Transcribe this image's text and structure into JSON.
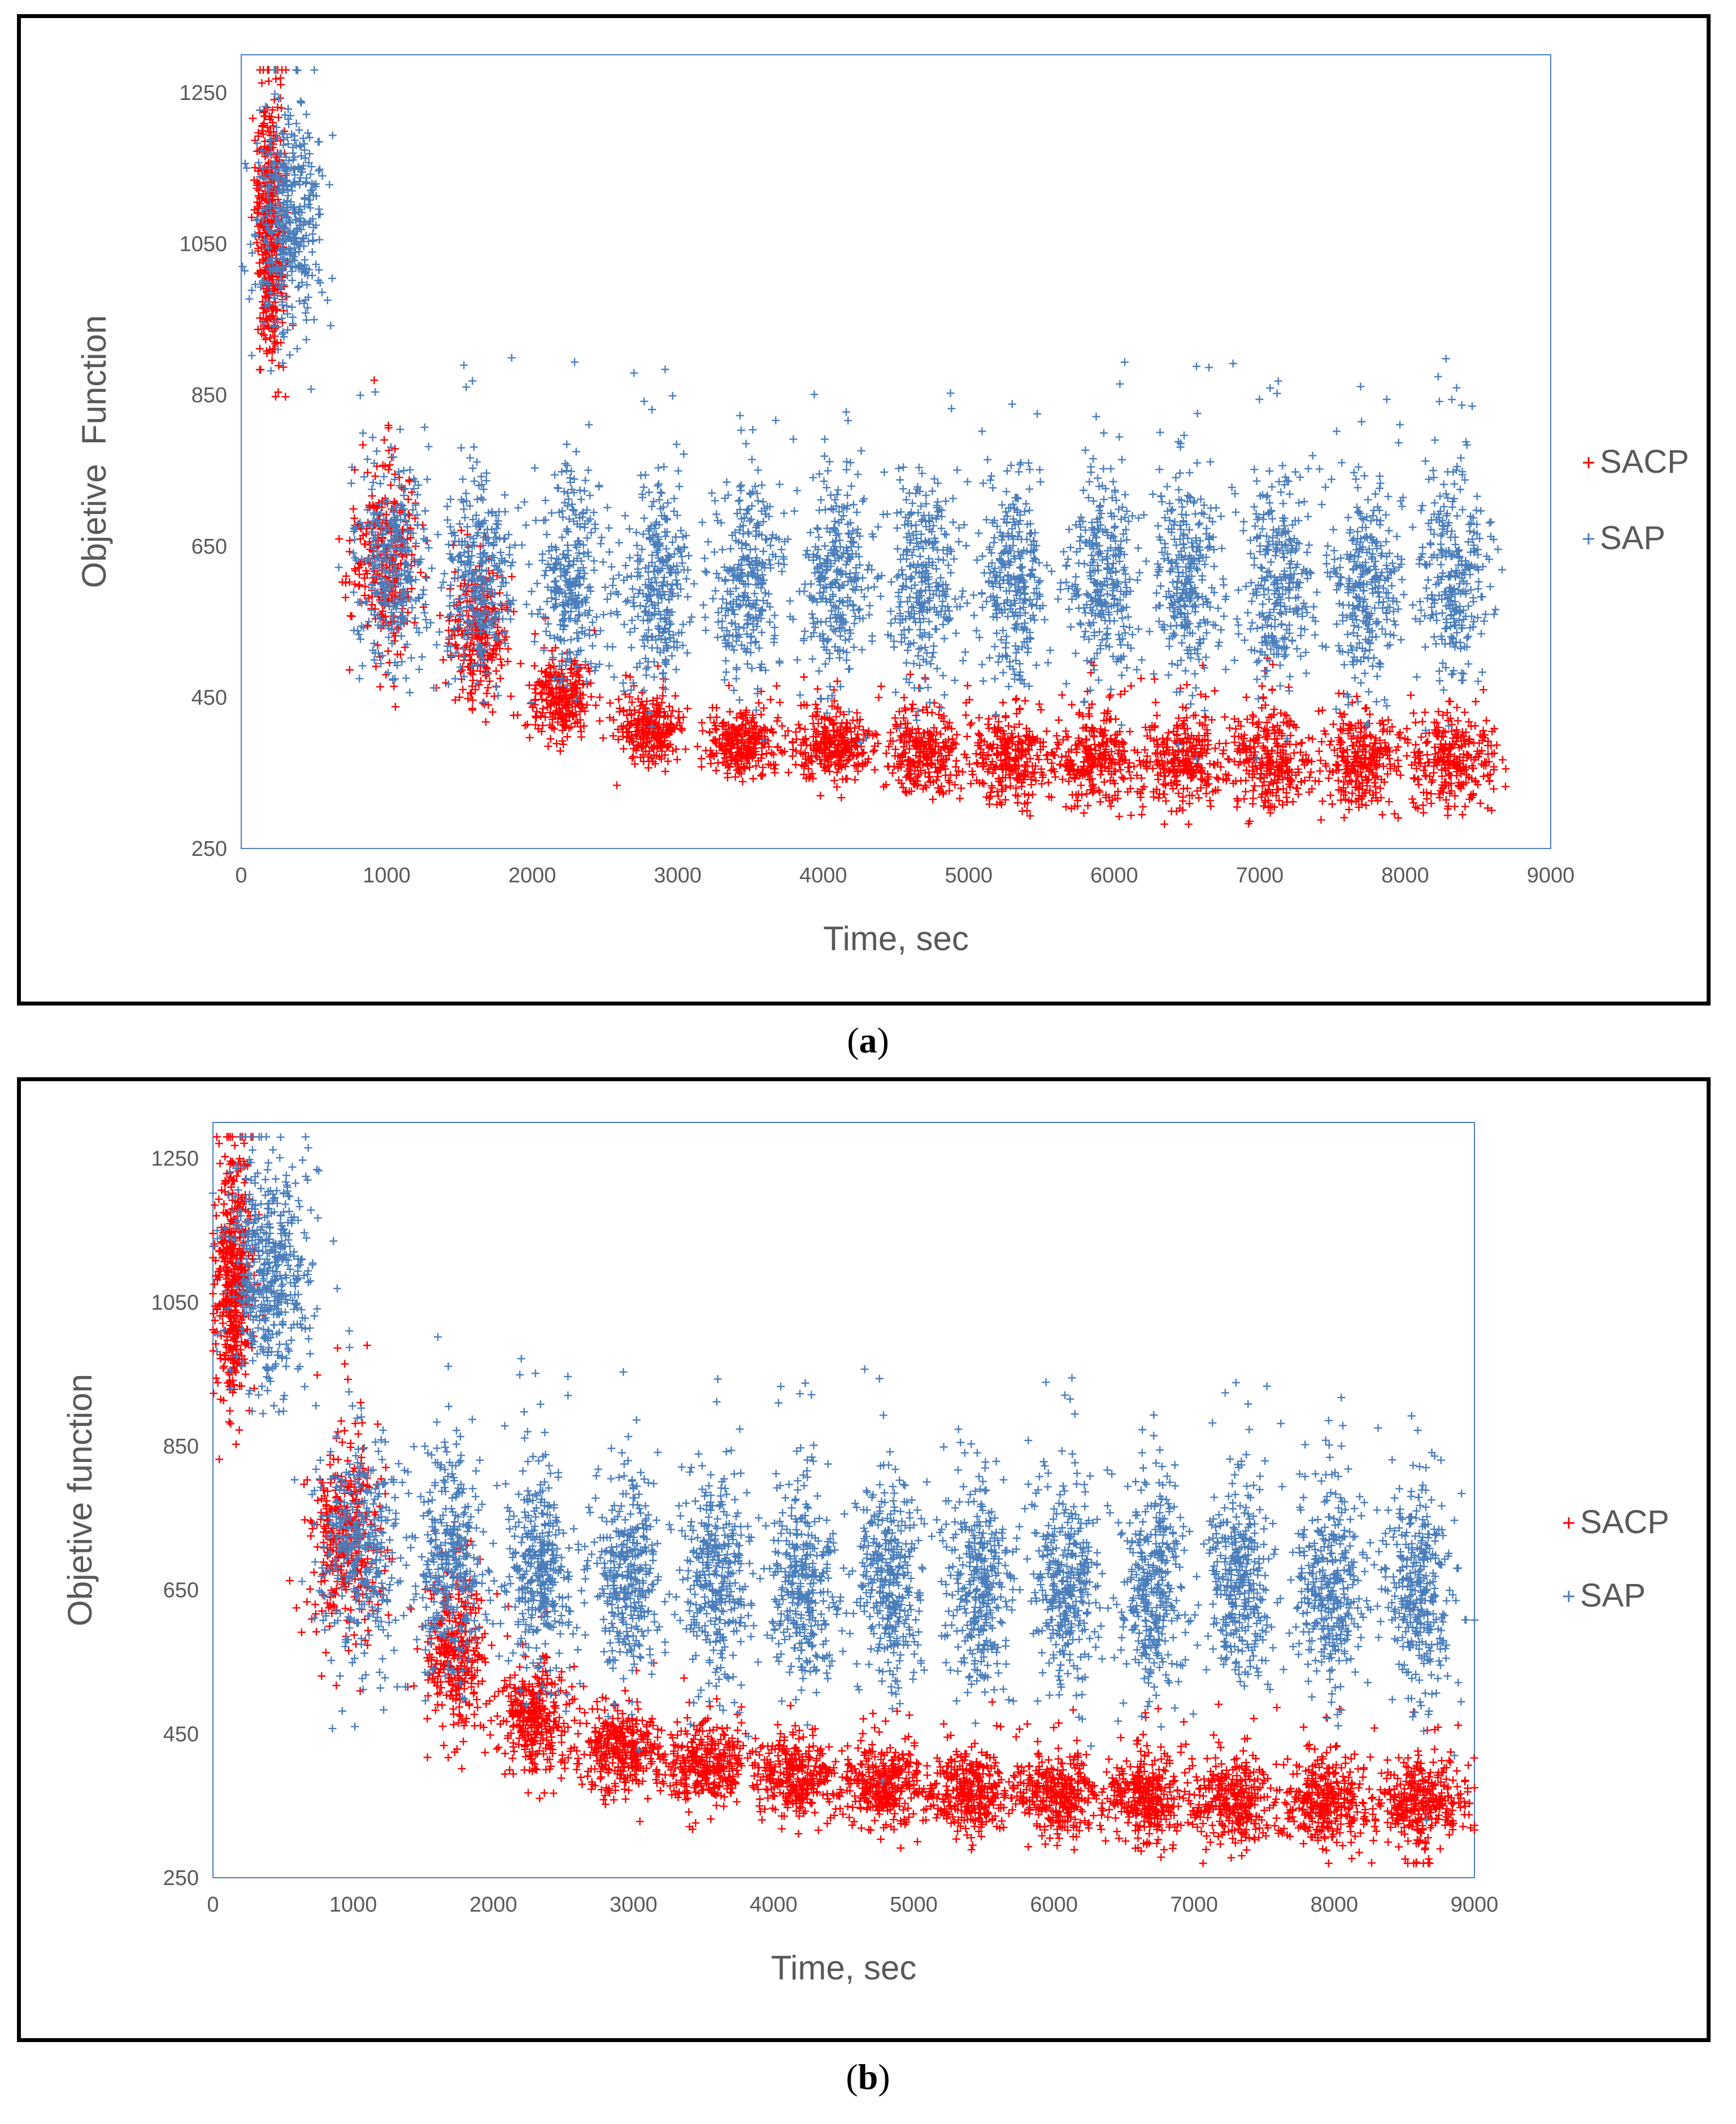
{
  "chart_data": [
    {
      "type": "scatter",
      "panel_label": "a",
      "title": "",
      "xlabel": "Time, sec",
      "ylabel": "Objetive  Function",
      "xlim": [
        0,
        9000
      ],
      "ylim": [
        250,
        1300
      ],
      "xticks": [
        "0",
        "1000",
        "2000",
        "3000",
        "4000",
        "5000",
        "6000",
        "7000",
        "8000",
        "9000"
      ],
      "yticks": [
        "250",
        "450",
        "650",
        "850",
        "1050",
        "1250"
      ],
      "grid": false,
      "legend_position": "right",
      "series": [
        {
          "name": "SACP",
          "color": "#ff0000",
          "marker": "+",
          "clusters": [
            {
              "x": 200,
              "y": 1070,
              "sx": 45,
              "sy": 85,
              "n": 450
            },
            {
              "x": 1000,
              "y": 625,
              "sx": 110,
              "sy": 60,
              "n": 320
            },
            {
              "x": 1620,
              "y": 540,
              "sx": 100,
              "sy": 45,
              "n": 280
            },
            {
              "x": 2200,
              "y": 450,
              "sx": 110,
              "sy": 28,
              "n": 260
            },
            {
              "x": 2810,
              "y": 405,
              "sx": 120,
              "sy": 22,
              "n": 260
            },
            {
              "x": 3440,
              "y": 392,
              "sx": 130,
              "sy": 22,
              "n": 280
            },
            {
              "x": 4060,
              "y": 385,
              "sx": 140,
              "sy": 24,
              "n": 280
            },
            {
              "x": 4660,
              "y": 378,
              "sx": 140,
              "sy": 26,
              "n": 280
            },
            {
              "x": 5270,
              "y": 372,
              "sx": 140,
              "sy": 30,
              "n": 280
            },
            {
              "x": 5870,
              "y": 368,
              "sx": 140,
              "sy": 32,
              "n": 280
            },
            {
              "x": 6470,
              "y": 368,
              "sx": 140,
              "sy": 32,
              "n": 280
            },
            {
              "x": 7070,
              "y": 368,
              "sx": 140,
              "sy": 32,
              "n": 280
            },
            {
              "x": 7690,
              "y": 368,
              "sx": 140,
              "sy": 32,
              "n": 280
            },
            {
              "x": 8330,
              "y": 368,
              "sx": 150,
              "sy": 32,
              "n": 280
            }
          ]
        },
        {
          "name": "SAP",
          "color": "#4a7ebb",
          "marker": "+",
          "clusters": [
            {
              "x": 320,
              "y": 1075,
              "sx": 110,
              "sy": 75,
              "n": 420
            },
            {
              "x": 1060,
              "y": 625,
              "sx": 150,
              "sy": 75,
              "n": 320
            },
            {
              "x": 1640,
              "y": 610,
              "sx": 120,
              "sy": 70,
              "n": 300
            },
            {
              "x": 2270,
              "y": 605,
              "sx": 120,
              "sy": 70,
              "n": 300
            },
            {
              "x": 2860,
              "y": 605,
              "sx": 120,
              "sy": 70,
              "n": 300
            },
            {
              "x": 3480,
              "y": 605,
              "sx": 120,
              "sy": 70,
              "n": 300
            },
            {
              "x": 4080,
              "y": 605,
              "sx": 120,
              "sy": 70,
              "n": 300
            },
            {
              "x": 4690,
              "y": 605,
              "sx": 120,
              "sy": 70,
              "n": 300
            },
            {
              "x": 5300,
              "y": 605,
              "sx": 120,
              "sy": 70,
              "n": 300
            },
            {
              "x": 5910,
              "y": 605,
              "sx": 120,
              "sy": 70,
              "n": 300
            },
            {
              "x": 6500,
              "y": 605,
              "sx": 120,
              "sy": 70,
              "n": 300
            },
            {
              "x": 7130,
              "y": 605,
              "sx": 120,
              "sy": 70,
              "n": 300
            },
            {
              "x": 7730,
              "y": 605,
              "sx": 120,
              "sy": 70,
              "n": 300
            },
            {
              "x": 8350,
              "y": 605,
              "sx": 130,
              "sy": 70,
              "n": 300
            }
          ]
        }
      ]
    },
    {
      "type": "scatter",
      "panel_label": "b",
      "title": "",
      "xlabel": "Time, sec",
      "ylabel": "Objetive function",
      "xlim": [
        0,
        9000
      ],
      "ylim": [
        250,
        1300
      ],
      "xticks": [
        "0",
        "1000",
        "2000",
        "3000",
        "4000",
        "5000",
        "6000",
        "7000",
        "8000",
        "9000"
      ],
      "yticks": [
        "250",
        "450",
        "650",
        "850",
        "1050",
        "1250"
      ],
      "grid": false,
      "legend_position": "right",
      "series": [
        {
          "name": "SACP",
          "color": "#ff0000",
          "marker": "+",
          "clusters": [
            {
              "x": 150,
              "y": 1085,
              "sx": 70,
              "sy": 80,
              "n": 500
            },
            {
              "x": 950,
              "y": 720,
              "sx": 130,
              "sy": 65,
              "n": 360
            },
            {
              "x": 1720,
              "y": 560,
              "sx": 110,
              "sy": 50,
              "n": 320
            },
            {
              "x": 2280,
              "y": 470,
              "sx": 130,
              "sy": 38,
              "n": 320
            },
            {
              "x": 2910,
              "y": 430,
              "sx": 140,
              "sy": 30,
              "n": 320
            },
            {
              "x": 3520,
              "y": 410,
              "sx": 150,
              "sy": 30,
              "n": 320
            },
            {
              "x": 4170,
              "y": 390,
              "sx": 150,
              "sy": 28,
              "n": 320
            },
            {
              "x": 4790,
              "y": 378,
              "sx": 150,
              "sy": 28,
              "n": 320
            },
            {
              "x": 5400,
              "y": 370,
              "sx": 150,
              "sy": 30,
              "n": 320
            },
            {
              "x": 6030,
              "y": 365,
              "sx": 150,
              "sy": 30,
              "n": 320
            },
            {
              "x": 6660,
              "y": 362,
              "sx": 150,
              "sy": 30,
              "n": 320
            },
            {
              "x": 7290,
              "y": 358,
              "sx": 150,
              "sy": 32,
              "n": 320
            },
            {
              "x": 7950,
              "y": 355,
              "sx": 150,
              "sy": 32,
              "n": 320
            },
            {
              "x": 8620,
              "y": 352,
              "sx": 180,
              "sy": 32,
              "n": 340
            }
          ]
        },
        {
          "name": "SAP",
          "color": "#4a7ebb",
          "marker": "+",
          "clusters": [
            {
              "x": 400,
              "y": 1090,
              "sx": 140,
              "sy": 75,
              "n": 480
            },
            {
              "x": 1060,
              "y": 700,
              "sx": 150,
              "sy": 75,
              "n": 360
            },
            {
              "x": 1680,
              "y": 690,
              "sx": 120,
              "sy": 75,
              "n": 340
            },
            {
              "x": 2330,
              "y": 675,
              "sx": 120,
              "sy": 72,
              "n": 340
            },
            {
              "x": 2960,
              "y": 670,
              "sx": 120,
              "sy": 72,
              "n": 340
            },
            {
              "x": 3580,
              "y": 665,
              "sx": 120,
              "sy": 72,
              "n": 340
            },
            {
              "x": 4210,
              "y": 662,
              "sx": 120,
              "sy": 72,
              "n": 340
            },
            {
              "x": 4830,
              "y": 660,
              "sx": 120,
              "sy": 72,
              "n": 340
            },
            {
              "x": 5460,
              "y": 658,
              "sx": 120,
              "sy": 72,
              "n": 340
            },
            {
              "x": 6090,
              "y": 658,
              "sx": 120,
              "sy": 72,
              "n": 340
            },
            {
              "x": 6710,
              "y": 655,
              "sx": 120,
              "sy": 72,
              "n": 340
            },
            {
              "x": 7330,
              "y": 655,
              "sx": 120,
              "sy": 72,
              "n": 340
            },
            {
              "x": 7970,
              "y": 652,
              "sx": 120,
              "sy": 72,
              "n": 340
            },
            {
              "x": 8620,
              "y": 650,
              "sx": 130,
              "sy": 72,
              "n": 340
            }
          ]
        }
      ]
    }
  ],
  "captions": {
    "a": "a",
    "b": "b"
  }
}
